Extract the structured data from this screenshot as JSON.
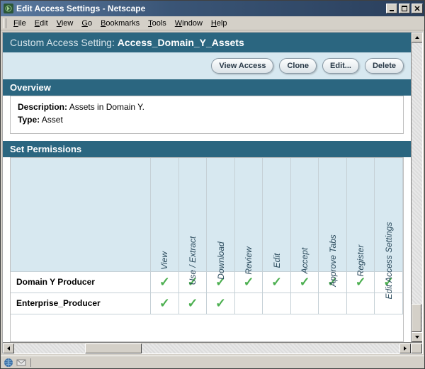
{
  "window": {
    "title": "Edit Access Settings - Netscape",
    "menus": [
      "File",
      "Edit",
      "View",
      "Go",
      "Bookmarks",
      "Tools",
      "Window",
      "Help"
    ]
  },
  "header": {
    "label": "Custom Access Setting:",
    "name": "Access_Domain_Y_Assets"
  },
  "buttons": {
    "view_access": "View Access",
    "clone": "Clone",
    "edit": "Edit...",
    "delete": "Delete"
  },
  "sections": {
    "overview": "Overview",
    "permissions": "Set Permissions"
  },
  "overview": {
    "description_label": "Description:",
    "description_value": "Assets in Domain Y.",
    "type_label": "Type:",
    "type_value": "Asset"
  },
  "permissions": {
    "columns": [
      "View",
      "Use / Extract",
      "Download",
      "Review",
      "Edit",
      "Accept",
      "Approve Tabs",
      "Register",
      "Edit Access Settings"
    ],
    "rows": [
      {
        "role": "Domain Y Producer",
        "checks": [
          true,
          true,
          true,
          true,
          true,
          true,
          true,
          true,
          true
        ]
      },
      {
        "role": "Enterprise_Producer",
        "checks": [
          true,
          true,
          true,
          false,
          false,
          false,
          false,
          false,
          false
        ]
      }
    ]
  },
  "colors": {
    "header_band": "#2b6680",
    "pale_band": "#d7e8f0",
    "check": "#4caf50"
  }
}
